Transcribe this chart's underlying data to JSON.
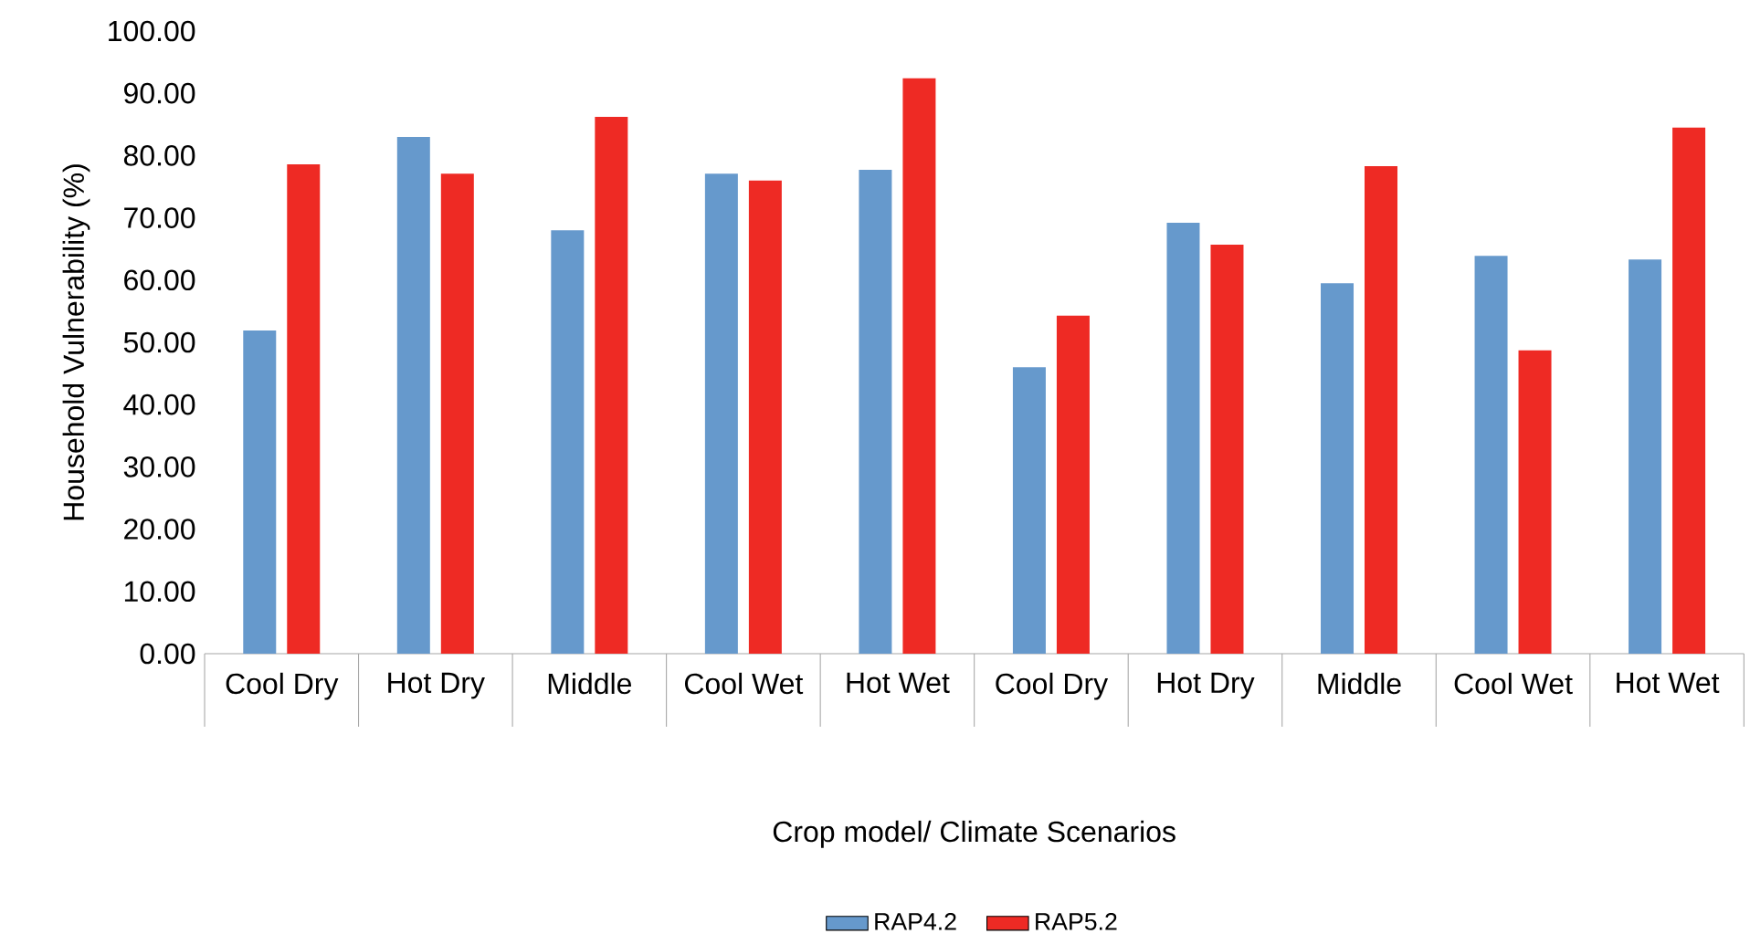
{
  "chart_data": {
    "type": "bar",
    "xlabel": "Crop model/ Climate Scenarios",
    "ylabel": "Household Vulnerability (%)",
    "categories": [
      "Cool Dry",
      "Hot Dry",
      "Middle",
      "Cool Wet",
      "Hot Wet",
      "Cool Dry",
      "Hot Dry",
      "Middle",
      "Cool Wet",
      "Hot Wet"
    ],
    "series": [
      {
        "name": "RAP4.2",
        "color": "#6699cc",
        "values": [
          51.9,
          83.0,
          68.0,
          77.1,
          77.7,
          46.0,
          69.2,
          59.5,
          63.9,
          63.3
        ]
      },
      {
        "name": "RAP5.2",
        "color": "#ee2a24",
        "values": [
          78.6,
          77.1,
          86.2,
          76.0,
          92.4,
          54.3,
          65.7,
          78.3,
          48.7,
          84.5
        ]
      }
    ],
    "ylim": [
      0,
      100
    ],
    "yticks": [
      {
        "value": 0,
        "label": "0.00"
      },
      {
        "value": 10,
        "label": "10.00"
      },
      {
        "value": 20,
        "label": "20.00"
      },
      {
        "value": 30,
        "label": "30.00"
      },
      {
        "value": 40,
        "label": "40.00"
      },
      {
        "value": 50,
        "label": "50.00"
      },
      {
        "value": 60,
        "label": "60.00"
      },
      {
        "value": 70,
        "label": "70.00"
      },
      {
        "value": 80,
        "label": "80.00"
      },
      {
        "value": 90,
        "label": "90.00"
      },
      {
        "value": 100,
        "label": "100.00"
      }
    ],
    "grid": false,
    "legend": "bottom"
  }
}
